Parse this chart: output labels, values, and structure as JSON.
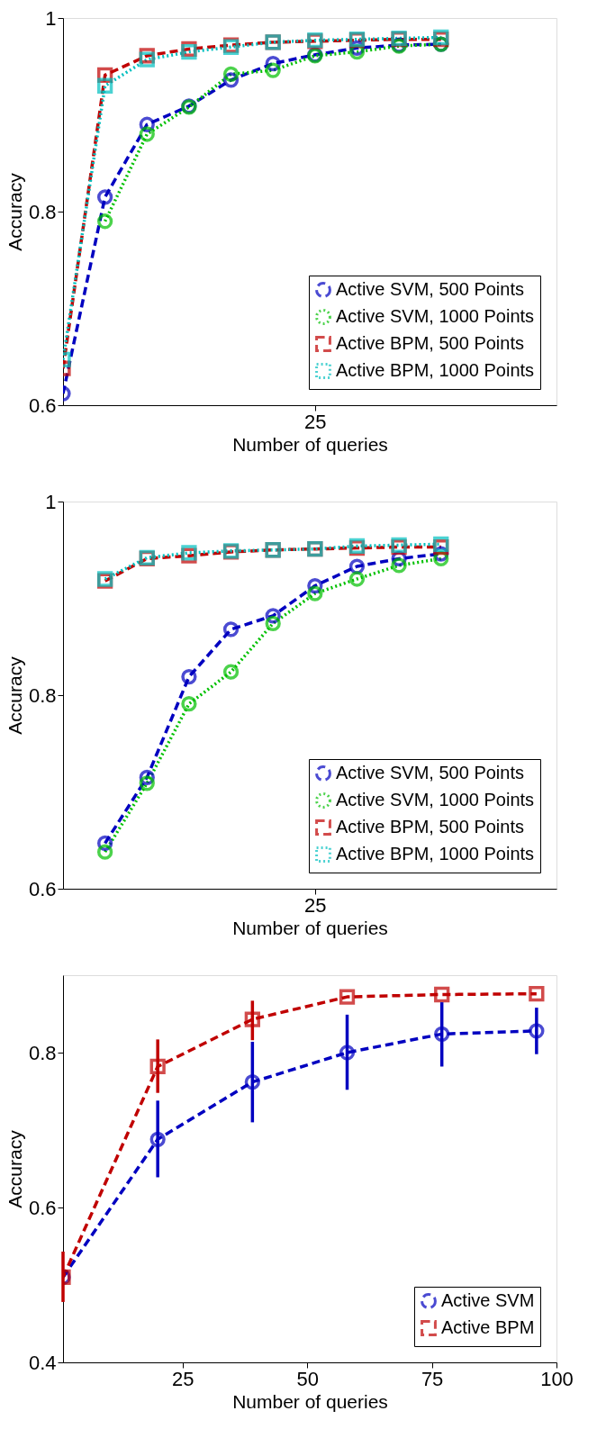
{
  "chart_data": [
    {
      "type": "line",
      "xlabel": "Number of queries",
      "ylabel": "Accuracy",
      "categories": [
        null,
        null,
        null,
        null,
        null,
        null,
        "25",
        null,
        null,
        null
      ],
      "ylim": [
        0.6,
        1
      ],
      "yticks": [
        0.6,
        0.8,
        1
      ],
      "grid": false,
      "legend": "bottom right",
      "series": [
        {
          "name": "Active SVM, 500 Points",
          "color": "#0000c0",
          "line_style": "dashed",
          "marker": "circle",
          "values": [
            0.612,
            0.815,
            0.89,
            0.909,
            0.936,
            0.953,
            0.962,
            0.969,
            0.972,
            0.973
          ]
        },
        {
          "name": "Active SVM, 1000 Points",
          "color": "#00c000",
          "line_style": "dotted",
          "marker": "circle",
          "values": [
            null,
            0.79,
            0.88,
            0.908,
            0.942,
            0.946,
            0.961,
            0.965,
            0.971,
            0.973
          ]
        },
        {
          "name": "Active BPM, 500 Points",
          "color": "#c00000",
          "line_style": "dashed",
          "marker": "square",
          "values": [
            0.638,
            0.941,
            0.961,
            0.968,
            0.972,
            0.975,
            0.976,
            0.977,
            0.978,
            0.978
          ]
        },
        {
          "name": "Active BPM, 1000 Points",
          "color": "#00bfbf",
          "line_style": "dotted",
          "marker": "square",
          "values": [
            0.647,
            0.93,
            0.957,
            0.965,
            0.97,
            0.975,
            0.977,
            0.978,
            0.979,
            0.98
          ]
        }
      ]
    },
    {
      "type": "line",
      "xlabel": "Number of queries",
      "ylabel": "Accuracy",
      "categories": [
        null,
        null,
        null,
        null,
        null,
        null,
        "25",
        null,
        null,
        null
      ],
      "ylim": [
        0.6,
        1
      ],
      "yticks": [
        0.6,
        0.8,
        1
      ],
      "grid": false,
      "legend": "bottom right",
      "series": [
        {
          "name": "Active SVM, 500 Points",
          "color": "#0000c0",
          "line_style": "dashed",
          "marker": "circle",
          "values": [
            null,
            0.647,
            0.715,
            0.819,
            0.868,
            0.882,
            0.913,
            0.933,
            0.941,
            0.946
          ]
        },
        {
          "name": "Active SVM, 1000 Points",
          "color": "#00c000",
          "line_style": "dotted",
          "marker": "circle",
          "values": [
            null,
            0.638,
            0.709,
            0.791,
            0.824,
            0.874,
            0.905,
            0.92,
            0.934,
            0.941
          ]
        },
        {
          "name": "Active BPM, 500 Points",
          "color": "#c00000",
          "line_style": "dashed",
          "marker": "square",
          "values": [
            null,
            0.918,
            0.941,
            0.944,
            0.948,
            0.95,
            0.951,
            0.952,
            0.953,
            0.953
          ]
        },
        {
          "name": "Active BPM, 1000 Points",
          "color": "#00bfbf",
          "line_style": "dotted",
          "marker": "square",
          "values": [
            null,
            0.92,
            0.942,
            0.947,
            0.949,
            0.95,
            0.951,
            0.954,
            0.955,
            0.956
          ]
        }
      ]
    },
    {
      "type": "line",
      "xlabel": "Number of queries",
      "ylabel": "Accuracy",
      "x": [
        1,
        20,
        39,
        58,
        77,
        96
      ],
      "xlim": [
        1,
        100
      ],
      "xticks": [
        25,
        50,
        75,
        100
      ],
      "ylim": [
        0.4,
        0.9
      ],
      "yticks": [
        0.4,
        0.6,
        0.8
      ],
      "grid": false,
      "legend": "bottom right",
      "series": [
        {
          "name": "Active SVM",
          "color": "#0000c0",
          "line_style": "dashed",
          "marker": "circle",
          "values": [
            0.51,
            0.688,
            0.762,
            0.8,
            0.824,
            0.828
          ],
          "errors": [
            null,
            [
              0.639,
              0.738
            ],
            [
              0.71,
              0.814
            ],
            [
              0.752,
              0.849
            ],
            [
              0.782,
              0.865
            ],
            [
              0.798,
              0.858
            ]
          ]
        },
        {
          "name": "Active BPM",
          "color": "#c00000",
          "line_style": "dashed",
          "marker": "square",
          "values": [
            0.51,
            0.782,
            0.843,
            0.872,
            0.875,
            0.876
          ],
          "errors": [
            [
              0.478,
              0.543
            ],
            [
              0.748,
              0.817
            ],
            [
              0.816,
              0.867
            ],
            null,
            null,
            null
          ]
        }
      ]
    }
  ]
}
